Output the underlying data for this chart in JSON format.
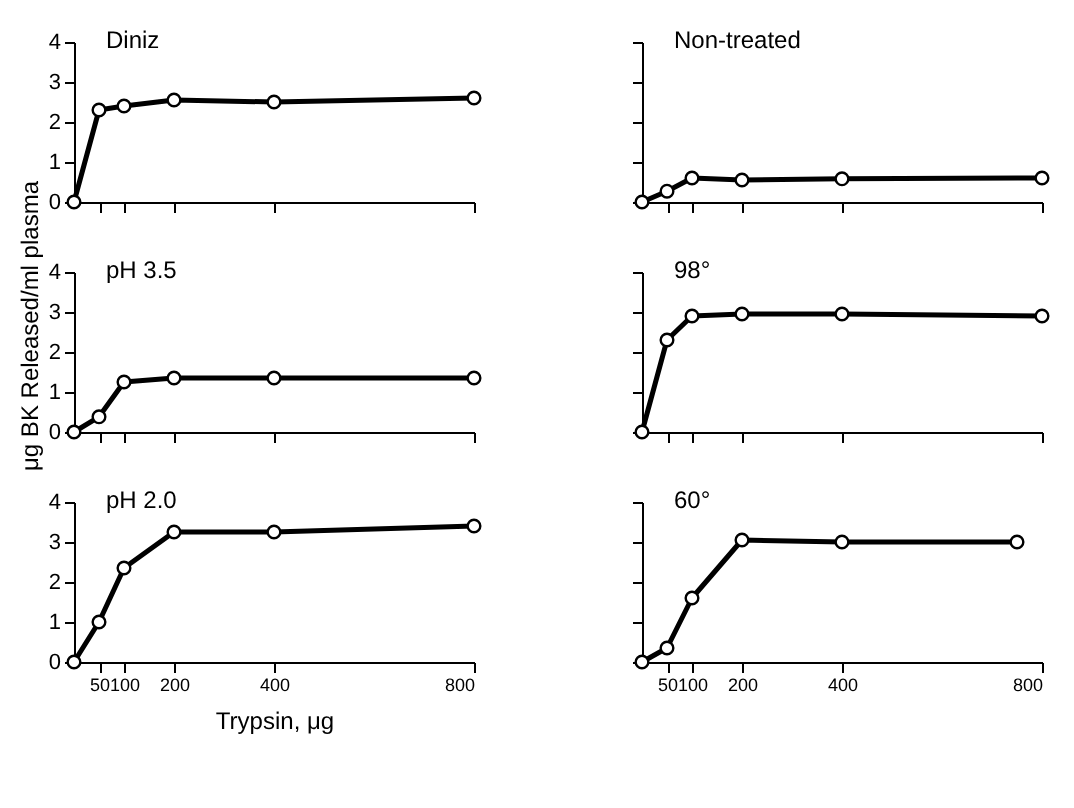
{
  "chart_data": [
    {
      "type": "line",
      "title": "Diniz",
      "x": [
        0,
        50,
        100,
        200,
        400,
        800
      ],
      "series": [
        {
          "color": "#000000",
          "values": [
            0,
            2.3,
            2.4,
            2.55,
            2.5,
            2.6
          ]
        }
      ],
      "xlim": [
        0,
        800
      ],
      "xticks": [
        50,
        100,
        200,
        400,
        800
      ],
      "ylim": [
        0,
        4
      ],
      "yticks": [
        0,
        1,
        2,
        3,
        4
      ],
      "marker": "circle",
      "tick_labels": "y"
    },
    {
      "type": "line",
      "title": "Non-treated",
      "x": [
        0,
        50,
        100,
        200,
        400,
        800
      ],
      "series": [
        {
          "color": "#000000",
          "values": [
            0,
            0.27,
            0.6,
            0.55,
            0.58,
            0.6
          ]
        }
      ],
      "xlim": [
        0,
        800
      ],
      "xticks": [
        50,
        100,
        200,
        400,
        800
      ],
      "ylim": [
        0,
        4
      ],
      "yticks": [
        0,
        1,
        2,
        3,
        4
      ],
      "marker": "circle",
      "tick_labels": false
    },
    {
      "type": "line",
      "title": "pH 3.5",
      "ylabel": "μg BK Released/ml plasma",
      "x": [
        0,
        50,
        100,
        200,
        400,
        800
      ],
      "series": [
        {
          "color": "#000000",
          "values": [
            0,
            0.38,
            1.25,
            1.35,
            1.35,
            1.35
          ]
        }
      ],
      "xlim": [
        0,
        800
      ],
      "xticks": [
        50,
        100,
        200,
        400,
        800
      ],
      "ylim": [
        0,
        4
      ],
      "yticks": [
        0,
        1,
        2,
        3,
        4
      ],
      "marker": "circle",
      "tick_labels": "y"
    },
    {
      "type": "line",
      "title": "98°",
      "x": [
        0,
        50,
        100,
        200,
        400,
        800
      ],
      "series": [
        {
          "color": "#000000",
          "values": [
            0,
            2.3,
            2.9,
            2.95,
            2.95,
            2.9
          ]
        }
      ],
      "xlim": [
        0,
        800
      ],
      "xticks": [
        50,
        100,
        200,
        400,
        800
      ],
      "ylim": [
        0,
        4
      ],
      "yticks": [
        0,
        1,
        2,
        3,
        4
      ],
      "marker": "circle",
      "tick_labels": false
    },
    {
      "type": "line",
      "title": "pH 2.0",
      "xlabel": "Trypsin,  μg",
      "x": [
        0,
        50,
        100,
        200,
        400,
        800
      ],
      "series": [
        {
          "color": "#000000",
          "values": [
            0,
            1.0,
            2.35,
            3.25,
            3.25,
            3.4
          ]
        }
      ],
      "xlim": [
        0,
        800
      ],
      "xticks": [
        50,
        100,
        200,
        400,
        800
      ],
      "ylim": [
        0,
        4
      ],
      "yticks": [
        0,
        1,
        2,
        3,
        4
      ],
      "marker": "circle"
    },
    {
      "type": "line",
      "title": "60°",
      "x": [
        0,
        50,
        100,
        200,
        400,
        750
      ],
      "series": [
        {
          "color": "#000000",
          "values": [
            0,
            0.35,
            1.6,
            3.05,
            3.0,
            3.0
          ]
        }
      ],
      "xlim": [
        0,
        800
      ],
      "xticks": [
        50,
        100,
        200,
        400,
        800
      ],
      "ylim": [
        0,
        4
      ],
      "yticks": [
        0,
        1,
        2,
        3,
        4
      ],
      "marker": "circle",
      "tick_labels": "x"
    }
  ]
}
